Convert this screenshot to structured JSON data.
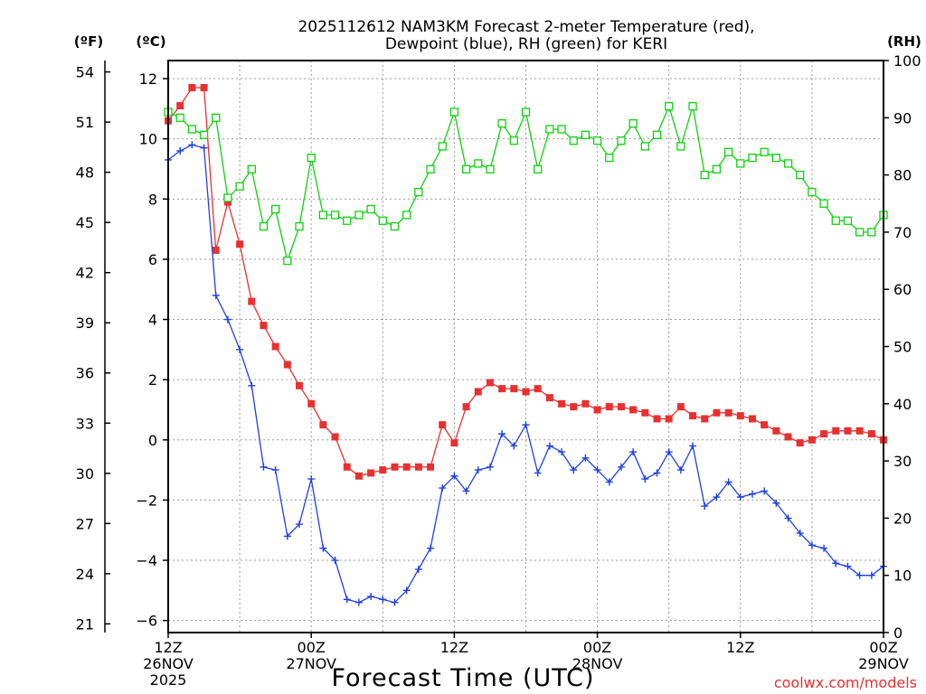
{
  "chart_data": {
    "type": "line",
    "title_line1": "2025112612 NAM3KM Forecast 2-meter Temperature (red),",
    "title_line2": "Dewpoint (blue), RH (green) for KERI",
    "xlabel": "Forecast Time (UTC)",
    "credit": "coolwx.com/models",
    "left_units_f": "(ºF)",
    "left_units_c": "(ºC)",
    "right_units": "(RH)",
    "colors": {
      "temperature": "#e83030",
      "dewpoint": "#2040e0",
      "rh": "#10d010"
    },
    "x_range_hours": [
      0,
      60
    ],
    "ylim_celsius": [
      -6.4,
      12.6
    ],
    "ylim_rh": [
      0,
      100
    ],
    "x_ticks": [
      {
        "hour": 0,
        "line1": "12Z",
        "line2": "26NOV",
        "line3": "2025"
      },
      {
        "hour": 12,
        "line1": "00Z",
        "line2": "27NOV",
        "line3": ""
      },
      {
        "hour": 24,
        "line1": "12Z",
        "line2": "",
        "line3": ""
      },
      {
        "hour": 36,
        "line1": "00Z",
        "line2": "28NOV",
        "line3": ""
      },
      {
        "hour": 48,
        "line1": "12Z",
        "line2": "",
        "line3": ""
      },
      {
        "hour": 60,
        "line1": "00Z",
        "line2": "29NOV",
        "line3": ""
      }
    ],
    "celsius_ticks": [
      "12",
      "10",
      "8",
      "6",
      "4",
      "2",
      "0",
      "−2",
      "−4",
      "−6"
    ],
    "celsius_tick_values": [
      12,
      10,
      8,
      6,
      4,
      2,
      0,
      -2,
      -4,
      -6
    ],
    "fahrenheit_ticks": [
      "54",
      "51",
      "48",
      "45",
      "42",
      "39",
      "36",
      "33",
      "30",
      "27",
      "24",
      "21"
    ],
    "fahrenheit_tick_values": [
      54,
      51,
      48,
      45,
      42,
      39,
      36,
      33,
      30,
      27,
      24,
      21
    ],
    "rh_ticks": [
      "100",
      "90",
      "80",
      "70",
      "60",
      "50",
      "40",
      "30",
      "20",
      "10",
      "0"
    ],
    "rh_tick_values": [
      100,
      90,
      80,
      70,
      60,
      50,
      40,
      30,
      20,
      10,
      0
    ],
    "series": [
      {
        "name": "Temperature",
        "unit": "C",
        "values": [
          10.6,
          11.1,
          11.7,
          11.7,
          6.3,
          7.9,
          6.5,
          4.6,
          3.8,
          3.1,
          2.5,
          1.8,
          1.2,
          0.5,
          0.1,
          -0.9,
          -1.2,
          -1.1,
          -1.0,
          -0.9,
          -0.9,
          -0.9,
          -0.9,
          0.5,
          -0.1,
          1.1,
          1.6,
          1.9,
          1.7,
          1.7,
          1.6,
          1.7,
          1.4,
          1.2,
          1.1,
          1.2,
          1.0,
          1.1,
          1.1,
          1.0,
          0.9,
          0.7,
          0.7,
          1.1,
          0.8,
          0.7,
          0.9,
          0.9,
          0.8,
          0.7,
          0.5,
          0.3,
          0.1,
          -0.1,
          0.0,
          0.2,
          0.3,
          0.3,
          0.3,
          0.2,
          0.0
        ]
      },
      {
        "name": "Dewpoint",
        "unit": "C",
        "values": [
          9.3,
          9.6,
          9.8,
          9.7,
          4.8,
          4.0,
          3.0,
          1.8,
          -0.9,
          -1.0,
          -3.2,
          -2.8,
          -1.3,
          -3.6,
          -4.0,
          -5.3,
          -5.4,
          -5.2,
          -5.3,
          -5.4,
          -5.0,
          -4.3,
          -3.6,
          -1.6,
          -1.2,
          -1.7,
          -1.0,
          -0.9,
          0.2,
          -0.2,
          0.5,
          -1.1,
          -0.2,
          -0.4,
          -1.0,
          -0.6,
          -1.0,
          -1.4,
          -0.9,
          -0.4,
          -1.3,
          -1.1,
          -0.4,
          -1.0,
          -0.2,
          -2.2,
          -1.9,
          -1.4,
          -1.9,
          -1.8,
          -1.7,
          -2.1,
          -2.6,
          -3.1,
          -3.5,
          -3.6,
          -4.1,
          -4.2,
          -4.5,
          -4.5,
          -4.2
        ]
      },
      {
        "name": "Relative Humidity",
        "unit": "%",
        "values": [
          91,
          90,
          88,
          87,
          90,
          76,
          78,
          81,
          71,
          74,
          65,
          71,
          83,
          73,
          73,
          72,
          73,
          74,
          72,
          71,
          73,
          77,
          81,
          85,
          91,
          81,
          82,
          81,
          89,
          86,
          91,
          81,
          88,
          88,
          86,
          87,
          86,
          83,
          86,
          89,
          85,
          87,
          92,
          85,
          92,
          80,
          81,
          84,
          82,
          83,
          84,
          83,
          82,
          80,
          77,
          75,
          72,
          72,
          70,
          70,
          73
        ]
      }
    ]
  }
}
